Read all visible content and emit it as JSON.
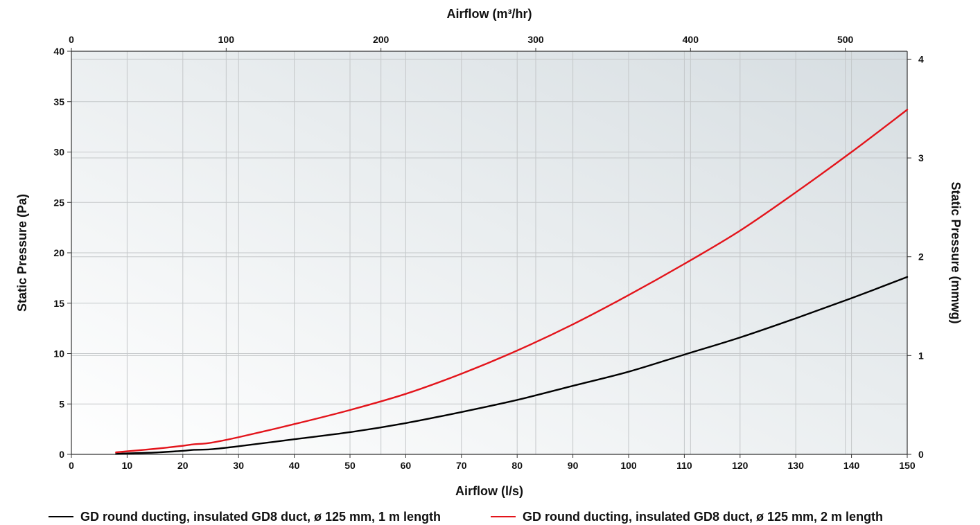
{
  "chart_data": {
    "type": "line",
    "title": "",
    "xlabel": "Airflow (l/s)",
    "x2label": "Airflow (m³/hr)",
    "ylabel": "Static Pressure (Pa)",
    "y2label": "Static Pressure (mmwg)",
    "xlim": [
      0,
      150
    ],
    "ylim": [
      0,
      40
    ],
    "x2lim": [
      0,
      540
    ],
    "y2lim": [
      0,
      4.08
    ],
    "x_ticks": [
      "0",
      "10",
      "20",
      "30",
      "40",
      "50",
      "60",
      "70",
      "80",
      "90",
      "100",
      "110",
      "120",
      "130",
      "140",
      "150"
    ],
    "y_ticks": [
      "0",
      "5",
      "10",
      "15",
      "20",
      "25",
      "30",
      "35",
      "40"
    ],
    "x2_ticks": [
      "0",
      "100",
      "200",
      "300",
      "400",
      "500"
    ],
    "y2_ticks": [
      "0",
      "1",
      "2",
      "3",
      "4"
    ],
    "grid": true,
    "legend_position": "bottom",
    "series": [
      {
        "name": "GD round ducting, insulated GD8 duct, ø 125 mm, 1 m length",
        "color": "#000000",
        "x": [
          8,
          10,
          15,
          20,
          22,
          25,
          30,
          40,
          50,
          60,
          70,
          80,
          90,
          100,
          110,
          120,
          130,
          140,
          150
        ],
        "y": [
          0.05,
          0.1,
          0.18,
          0.35,
          0.45,
          0.5,
          0.8,
          1.5,
          2.2,
          3.1,
          4.2,
          5.4,
          6.8,
          8.2,
          9.9,
          11.6,
          13.5,
          15.5,
          17.6
        ]
      },
      {
        "name": "GD round ducting, insulated GD8 duct, ø 125 mm, 2 m length",
        "color": "#e3141b",
        "x": [
          8,
          10,
          15,
          20,
          22,
          25,
          30,
          40,
          50,
          60,
          70,
          80,
          90,
          100,
          110,
          120,
          130,
          140,
          150
        ],
        "y": [
          0.2,
          0.3,
          0.55,
          0.85,
          1.0,
          1.15,
          1.7,
          3.0,
          4.4,
          6.0,
          8.0,
          10.3,
          12.9,
          15.8,
          18.9,
          22.2,
          26.0,
          30.0,
          34.2
        ]
      }
    ]
  }
}
